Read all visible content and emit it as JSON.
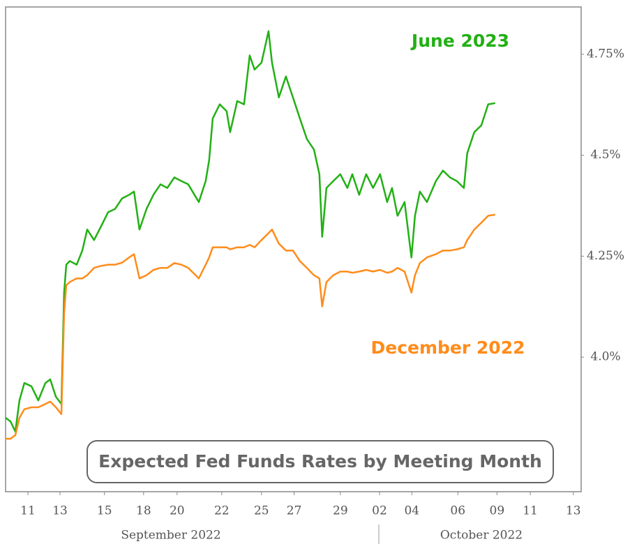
{
  "chart_data": {
    "type": "line",
    "title": "Expected Fed Funds Rates by Meeting Month",
    "x_group_labels": [
      "September 2022",
      "October 2022"
    ],
    "xlim": [
      0,
      29.4
    ],
    "xticks": [
      {
        "value": 1.14,
        "label": "11"
      },
      {
        "value": 2.78,
        "label": "13"
      },
      {
        "value": 5.05,
        "label": "15"
      },
      {
        "value": 7.05,
        "label": "18"
      },
      {
        "value": 8.76,
        "label": "20"
      },
      {
        "value": 11.04,
        "label": "22"
      },
      {
        "value": 13.07,
        "label": "25"
      },
      {
        "value": 14.74,
        "label": "27"
      },
      {
        "value": 17.1,
        "label": "29"
      },
      {
        "value": 19.1,
        "label": "02"
      },
      {
        "value": 20.75,
        "label": "04"
      },
      {
        "value": 23.1,
        "label": "06"
      },
      {
        "value": 25.1,
        "label": "09"
      },
      {
        "value": 26.8,
        "label": "11"
      },
      {
        "value": 29.0,
        "label": "13"
      }
    ],
    "ylim": [
      3.667,
      4.867
    ],
    "yticks": [
      {
        "value": 4.0,
        "label": "4.0%"
      },
      {
        "value": 4.25,
        "label": "4.25%"
      },
      {
        "value": 4.5,
        "label": "4.5%"
      },
      {
        "value": 4.75,
        "label": "4.75%"
      }
    ],
    "x": [
      0,
      0.25,
      0.5,
      0.71,
      0.96,
      1.32,
      1.67,
      2.03,
      2.28,
      2.57,
      2.85,
      2.99,
      3.1,
      3.28,
      3.63,
      3.92,
      4.17,
      4.52,
      4.88,
      5.24,
      5.59,
      5.95,
      6.31,
      6.56,
      6.84,
      7.2,
      7.55,
      7.91,
      8.26,
      8.62,
      8.98,
      9.33,
      9.87,
      10.22,
      10.4,
      10.58,
      10.94,
      11.29,
      11.47,
      11.83,
      12.18,
      12.47,
      12.72,
      13.07,
      13.43,
      13.61,
      13.96,
      14.32,
      14.68,
      15.03,
      15.39,
      15.75,
      16.03,
      16.17,
      16.39,
      16.74,
      17.1,
      17.46,
      17.71,
      18.06,
      18.42,
      18.77,
      19.13,
      19.49,
      19.74,
      20.02,
      20.38,
      20.73,
      20.91,
      21.16,
      21.52,
      21.98,
      22.34,
      22.7,
      23.05,
      23.41,
      23.58,
      23.94,
      24.3,
      24.65,
      25.01
    ],
    "series": [
      {
        "name": "June 2023",
        "color": "#22b014",
        "values": [
          3.85,
          3.841,
          3.816,
          3.893,
          3.936,
          3.928,
          3.893,
          3.936,
          3.945,
          3.902,
          3.884,
          4.16,
          4.229,
          4.238,
          4.229,
          4.264,
          4.316,
          4.29,
          4.324,
          4.359,
          4.367,
          4.393,
          4.402,
          4.41,
          4.316,
          4.367,
          4.402,
          4.428,
          4.419,
          4.445,
          4.436,
          4.428,
          4.384,
          4.436,
          4.488,
          4.591,
          4.626,
          4.609,
          4.557,
          4.634,
          4.626,
          4.747,
          4.712,
          4.729,
          4.807,
          4.729,
          4.643,
          4.695,
          4.643,
          4.591,
          4.54,
          4.514,
          4.453,
          4.298,
          4.419,
          4.436,
          4.453,
          4.419,
          4.453,
          4.402,
          4.453,
          4.419,
          4.453,
          4.384,
          4.419,
          4.35,
          4.384,
          4.247,
          4.35,
          4.41,
          4.384,
          4.436,
          4.462,
          4.445,
          4.436,
          4.419,
          4.505,
          4.557,
          4.574,
          4.626,
          4.629
        ]
      },
      {
        "name": "December 2022",
        "color": "#ff8c1a",
        "values": [
          3.798,
          3.798,
          3.807,
          3.85,
          3.871,
          3.876,
          3.876,
          3.884,
          3.89,
          3.876,
          3.859,
          4.109,
          4.178,
          4.186,
          4.195,
          4.195,
          4.203,
          4.221,
          4.226,
          4.229,
          4.229,
          4.234,
          4.247,
          4.255,
          4.195,
          4.203,
          4.216,
          4.221,
          4.221,
          4.233,
          4.229,
          4.221,
          4.195,
          4.229,
          4.247,
          4.272,
          4.272,
          4.272,
          4.267,
          4.272,
          4.272,
          4.278,
          4.272,
          4.29,
          4.307,
          4.316,
          4.281,
          4.264,
          4.264,
          4.238,
          4.221,
          4.203,
          4.195,
          4.126,
          4.186,
          4.203,
          4.212,
          4.212,
          4.209,
          4.212,
          4.216,
          4.212,
          4.216,
          4.209,
          4.212,
          4.221,
          4.212,
          4.16,
          4.203,
          4.233,
          4.247,
          4.255,
          4.264,
          4.264,
          4.267,
          4.272,
          4.29,
          4.316,
          4.333,
          4.35,
          4.353
        ]
      }
    ]
  }
}
